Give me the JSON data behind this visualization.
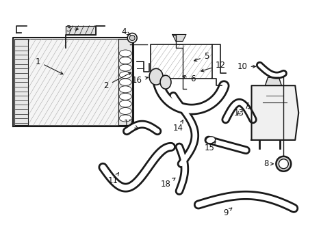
{
  "bg_color": "#ffffff",
  "line_color": "#1a1a1a",
  "fig_width": 4.89,
  "fig_height": 3.6,
  "dpi": 100,
  "label_fontsize": 8.5,
  "text_color": "#111111"
}
